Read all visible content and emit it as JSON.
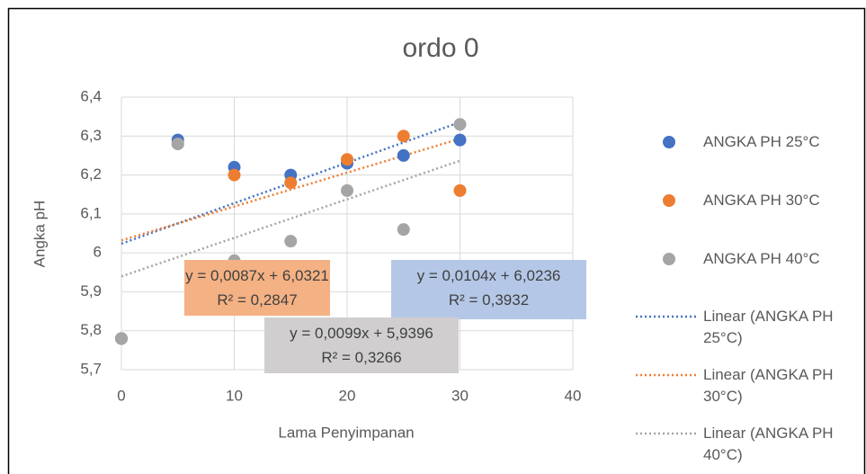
{
  "chart_data": {
    "type": "scatter",
    "title": "ordo 0",
    "x_label": "Lama Penyimpanan",
    "y_label": "Angka pH",
    "xlim": [
      0,
      40
    ],
    "xticks": [
      0,
      10,
      20,
      30,
      40
    ],
    "ylim": [
      5.7,
      6.4
    ],
    "yticks": [
      {
        "value": 5.7,
        "label": "5,7"
      },
      {
        "value": 5.8,
        "label": "5,8"
      },
      {
        "value": 5.9,
        "label": "5,9"
      },
      6,
      {
        "value": 6.1,
        "label": "6,1"
      },
      {
        "value": 6.2,
        "label": "6,2"
      },
      {
        "value": 6.3,
        "label": "6,3"
      },
      {
        "value": 6.4,
        "label": "6,4"
      }
    ],
    "grid": true,
    "legend": "right",
    "series": [
      {
        "name": "ANGKA PH 25°C",
        "color": "#4472c4",
        "x": [
          0,
          5,
          10,
          15,
          20,
          25,
          30
        ],
        "values": [
          5.78,
          6.29,
          6.22,
          6.2,
          6.23,
          6.25,
          6.29
        ]
      },
      {
        "name": "ANGKA PH 30°C",
        "color": "#ed7d31",
        "x": [
          0,
          5,
          10,
          15,
          20,
          25,
          30
        ],
        "values": [
          5.78,
          6.28,
          6.2,
          6.18,
          6.24,
          6.3,
          6.16
        ]
      },
      {
        "name": "ANGKA PH 40°C",
        "color": "#a5a5a5",
        "x": [
          0,
          5,
          10,
          15,
          20,
          25,
          30
        ],
        "values": [
          5.78,
          6.28,
          5.98,
          6.03,
          6.16,
          6.06,
          6.33
        ]
      }
    ],
    "trendlines": [
      {
        "name": "Linear (ANGKA PH 25°C)",
        "color": "#4472c4",
        "slope": 0.0104,
        "intercept": 6.0236,
        "equation": "y = 0,0104x + 6,0236",
        "r2": "R² = 0,3932"
      },
      {
        "name": "Linear (ANGKA PH 30°C)",
        "color": "#ed7d31",
        "slope": 0.0087,
        "intercept": 6.0321,
        "equation": "y = 0,0087x + 6,0321",
        "r2": "R² = 0,2847"
      },
      {
        "name": "Linear (ANGKA PH 40°C)",
        "color": "#a5a5a5",
        "slope": 0.0099,
        "intercept": 5.9396,
        "equation": "y = 0,0099x + 5,9396",
        "r2": "R² = 0,3266"
      }
    ]
  }
}
